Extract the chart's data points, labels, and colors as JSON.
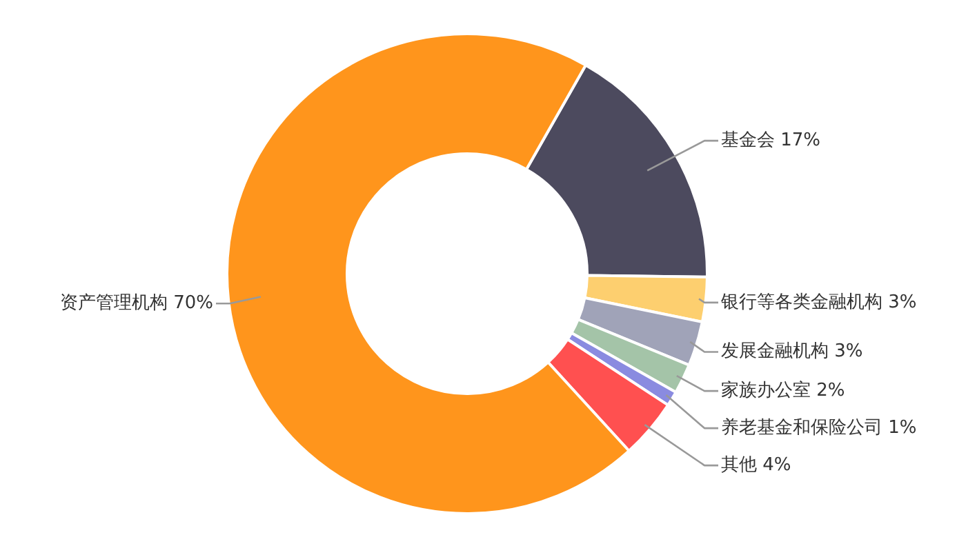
{
  "chart_data": {
    "type": "donut",
    "categories": [
      "基金会",
      "银行等各类金融机构",
      "发展金融机构",
      "家族办公室",
      "养老基金和保险公司",
      "其他",
      "资产管理机构"
    ],
    "values": [
      17,
      3,
      3,
      2,
      1,
      4,
      70
    ],
    "value_labels": [
      "17%",
      "3%",
      "3%",
      "2%",
      "1%",
      "4%",
      "70%"
    ],
    "colors": [
      "#4c4a5e",
      "#fdcf6f",
      "#a0a3b8",
      "#a4c4a8",
      "#8a8be0",
      "#ff5050",
      "#ff951c"
    ]
  }
}
